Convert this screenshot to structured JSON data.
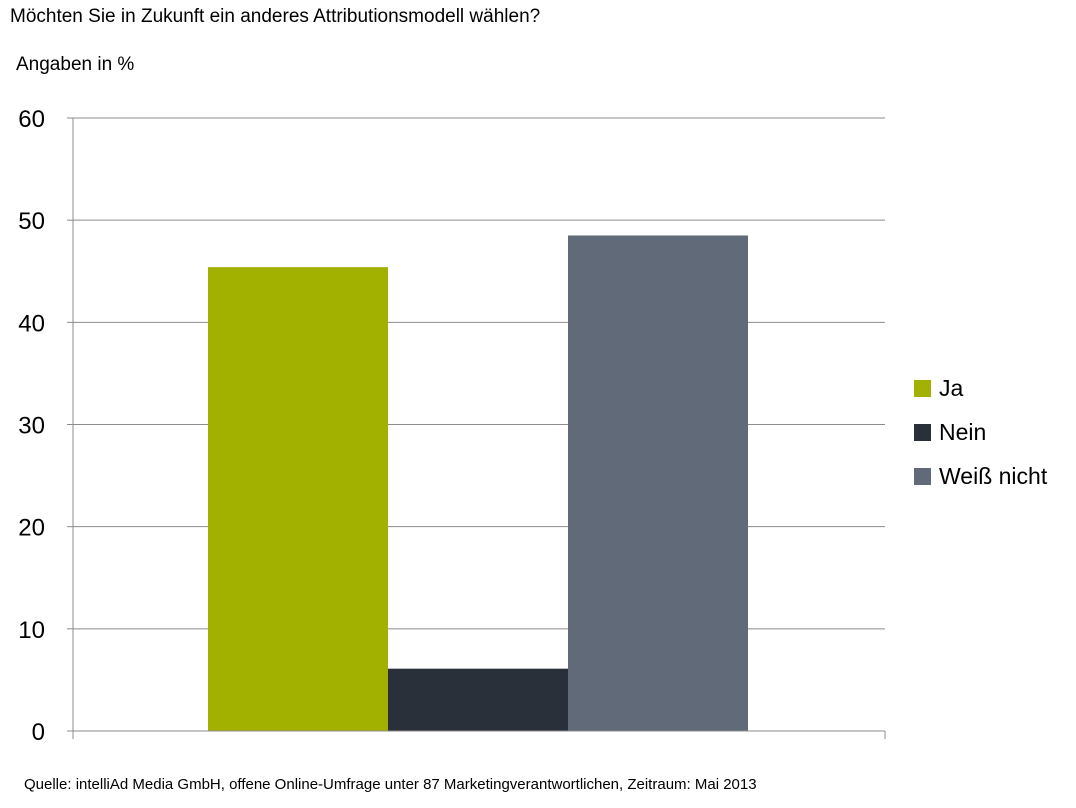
{
  "header": {
    "title": "Möchten Sie in Zukunft ein anderes Attributionsmodell wählen?",
    "subtitle": "Angaben in %"
  },
  "footer": {
    "source": "Quelle: intelliAd Media GmbH, offene Online-Umfrage unter 87 Marketingverantwortlichen, Zeitraum: Mai 2013"
  },
  "chart_data": {
    "type": "bar",
    "title": "Möchten Sie in Zukunft ein anderes Attributionsmodell wählen?",
    "ylabel": "Angaben in %",
    "xlabel": "",
    "ylim": [
      0,
      60
    ],
    "yticks": [
      0,
      10,
      20,
      30,
      40,
      50,
      60
    ],
    "grid": true,
    "legend_position": "right",
    "series": [
      {
        "name": "Ja",
        "values": [
          45.4
        ],
        "color": "#a2b000"
      },
      {
        "name": "Nein",
        "values": [
          6.1
        ],
        "color": "#29303a"
      },
      {
        "name": "Weiß nicht",
        "values": [
          48.5
        ],
        "color": "#606a78"
      }
    ]
  }
}
